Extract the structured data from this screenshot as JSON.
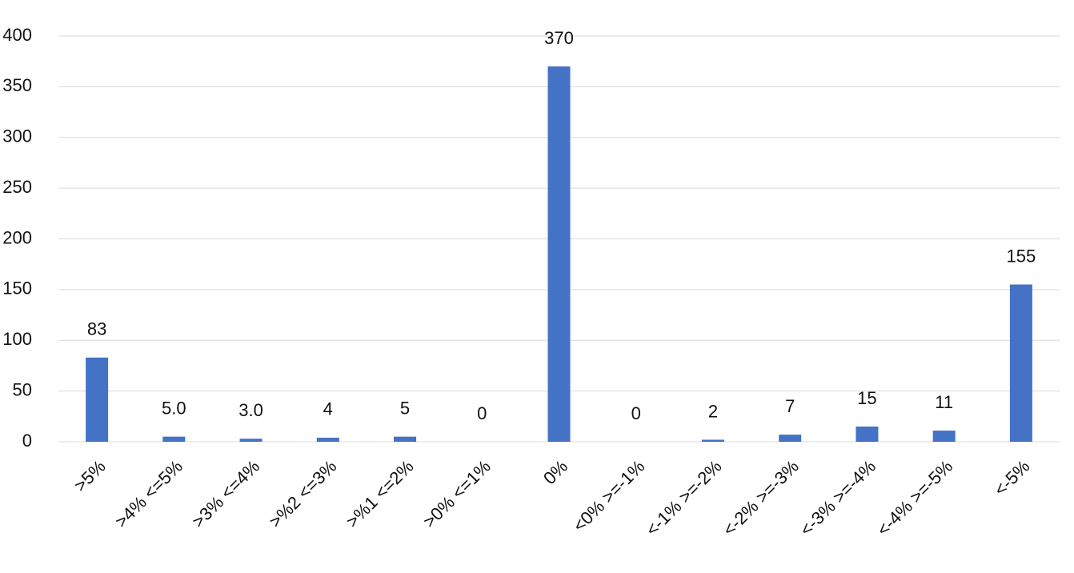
{
  "chart_data": {
    "type": "bar",
    "categories": [
      ">5%",
      ">4% <=5%",
      ">3% <=4%",
      ">%2 <=3%",
      ">%1 <=2%",
      ">0% <=1%",
      "0%",
      "<0% >=-1%",
      "<-1% >=-2%",
      "<-2% >=-3%",
      "<-3% >=-4%",
      "<-4% >=-5%",
      "<-5%"
    ],
    "values": [
      83,
      5,
      3,
      4,
      5,
      0,
      370,
      0,
      2,
      7,
      15,
      11,
      155
    ],
    "value_labels": [
      "83",
      "5.0",
      "3.0",
      "4",
      "5",
      "0",
      "370",
      "0",
      "2",
      "7",
      "15",
      "11",
      "155"
    ],
    "color": "#4472c4",
    "ylim": [
      0,
      400
    ],
    "yticks": [
      0,
      50,
      100,
      150,
      200,
      250,
      300,
      350,
      400
    ],
    "grid": true
  }
}
